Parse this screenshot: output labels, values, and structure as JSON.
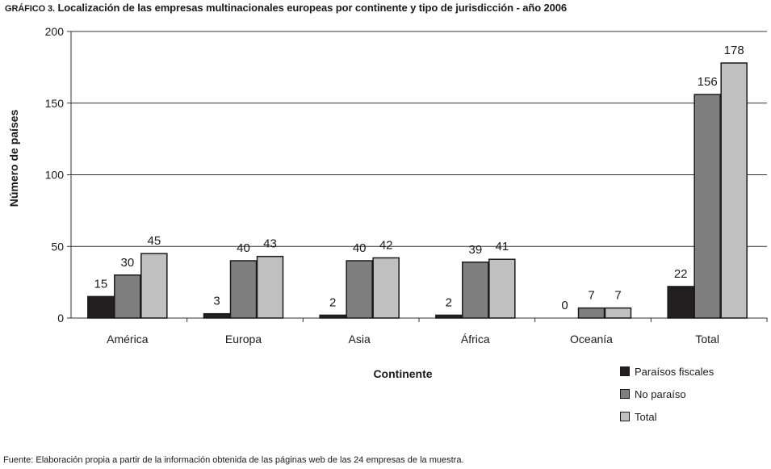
{
  "title": {
    "prefix": "GRÁFICO 3.",
    "text": "Localización de las empresas multinacionales europeas por continente y tipo de jurisdicción - año 2006"
  },
  "source": "Fuente: Elaboración propia a partir de la información obtenida de las páginas web de las 24 empresas de la muestra.",
  "colors": {
    "Paraísos fiscales": "#231f20",
    "No paraíso": "#7f7f7f",
    "Total": "#c0c0c0"
  },
  "chart_data": {
    "type": "bar",
    "title": "Localización de las empresas multinacionales europeas por continente y tipo de jurisdicción - año 2006",
    "xlabel": "Continente",
    "ylabel": "Número de países",
    "ylim": [
      0,
      200
    ],
    "yticks": [
      0,
      50,
      100,
      150,
      200
    ],
    "grid": true,
    "legend_position": "bottom-right",
    "categories": [
      "América",
      "Europa",
      "Asia",
      "África",
      "Oceanía",
      "Total"
    ],
    "series": [
      {
        "name": "Paraísos fiscales",
        "values": [
          15,
          3,
          2,
          2,
          0,
          22
        ]
      },
      {
        "name": "No paraíso",
        "values": [
          30,
          40,
          40,
          39,
          7,
          156
        ]
      },
      {
        "name": "Total",
        "values": [
          45,
          43,
          42,
          41,
          7,
          178
        ]
      }
    ]
  }
}
